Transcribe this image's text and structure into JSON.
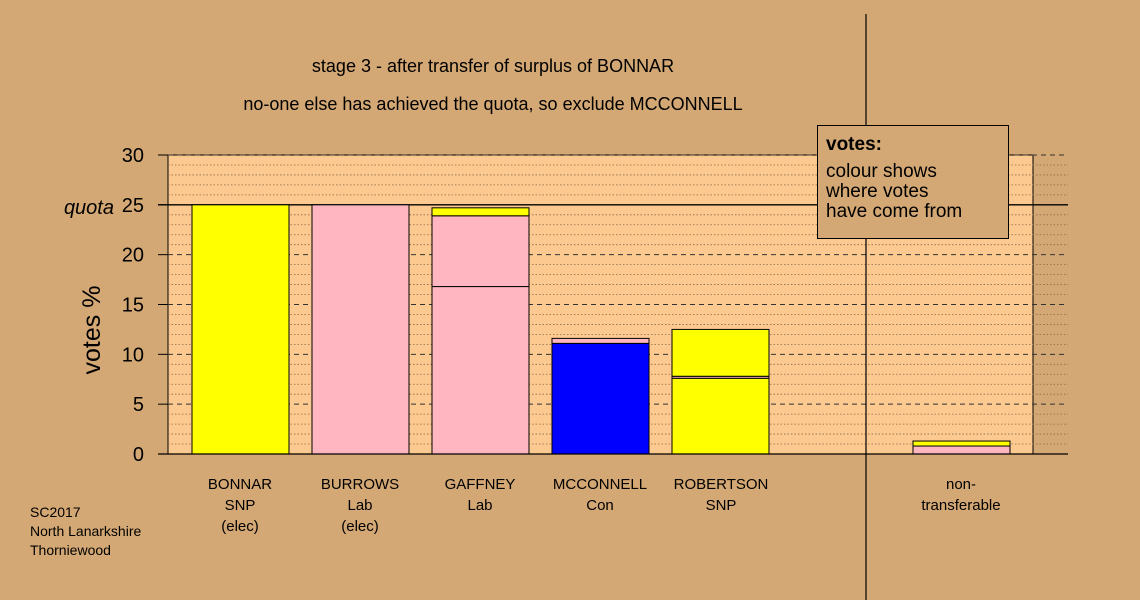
{
  "chart_data": {
    "type": "bar",
    "stacked": true,
    "title": "stage 3 - after transfer of surplus of BONNAR",
    "subtitle": "no-one else has achieved the quota, so exclude MCCONNELL",
    "ylabel": "votes %",
    "ylim": [
      0,
      30
    ],
    "yticks": [
      0,
      5,
      10,
      15,
      20,
      25,
      30
    ],
    "quota": 25,
    "quota_label": "quota",
    "grid": true,
    "categories": [
      [
        "BONNAR",
        "SNP",
        "(elec)"
      ],
      [
        "BURROWS",
        "Lab",
        "(elec)"
      ],
      [
        "GAFFNEY",
        "Lab"
      ],
      [
        "MCCONNELL",
        "Con"
      ],
      [
        "ROBERTSON",
        "SNP"
      ],
      [
        "non-",
        "transferable"
      ]
    ],
    "bars": [
      [
        {
          "value": 25.0,
          "color": "#ffff00"
        }
      ],
      [
        {
          "value": 25.0,
          "color": "#ffb6c1"
        }
      ],
      [
        {
          "value": 16.8,
          "color": "#ffb6c1"
        },
        {
          "value": 7.1,
          "color": "#ffb6c1"
        },
        {
          "value": 0.8,
          "color": "#ffff00"
        }
      ],
      [
        {
          "value": 11.1,
          "color": "#0000ff"
        },
        {
          "value": 0.5,
          "color": "#ffb6c1"
        }
      ],
      [
        {
          "value": 7.6,
          "color": "#ffff00"
        },
        {
          "value": 0.2,
          "color": "#ffb6c1"
        },
        {
          "value": 4.7,
          "color": "#ffff00"
        }
      ],
      [
        {
          "value": 0.8,
          "color": "#ffb6c1"
        },
        {
          "value": 0.5,
          "color": "#ffff00"
        }
      ]
    ]
  },
  "legend": {
    "title": "votes:",
    "lines": [
      "colour shows",
      "where votes",
      "have come from"
    ]
  },
  "credit": [
    "SC2017",
    "North Lanarkshire",
    "Thorniewood"
  ],
  "colors": {
    "background": "#d4a874",
    "plot_background": "#fcc990"
  }
}
